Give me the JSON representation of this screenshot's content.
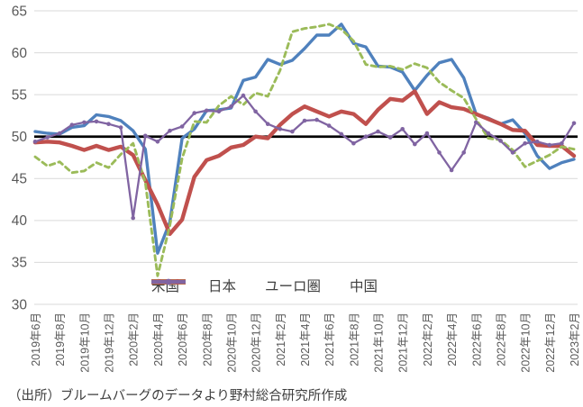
{
  "source_note": "（出所）ブルームバーグのデータより野村総合研究所作成",
  "chart_data": {
    "type": "line",
    "title": "",
    "xlabel": "",
    "ylabel": "",
    "ylim": [
      30,
      65
    ],
    "y_ticks": [
      30,
      35,
      40,
      45,
      50,
      55,
      60,
      65
    ],
    "reference_line": 50,
    "reference_line_color": "#000000",
    "grid": "horizontal",
    "grid_color": "#d9d9d9",
    "axis_text_color": "#595959",
    "legend_position": "bottom",
    "x_tick_step": 2,
    "categories": [
      "2019年6月",
      "2019年7月",
      "2019年8月",
      "2019年9月",
      "2019年10月",
      "2019年11月",
      "2019年12月",
      "2020年1月",
      "2020年2月",
      "2020年3月",
      "2020年4月",
      "2020年5月",
      "2020年6月",
      "2020年7月",
      "2020年8月",
      "2020年9月",
      "2020年10月",
      "2020年11月",
      "2020年12月",
      "2021年1月",
      "2021年2月",
      "2021年3月",
      "2021年4月",
      "2021年5月",
      "2021年6月",
      "2021年7月",
      "2021年8月",
      "2021年9月",
      "2021年10月",
      "2021年11月",
      "2021年12月",
      "2022年1月",
      "2022年2月",
      "2022年3月",
      "2022年4月",
      "2022年5月",
      "2022年6月",
      "2022年7月",
      "2022年8月",
      "2022年9月",
      "2022年10月",
      "2022年11月",
      "2022年12月",
      "2023年1月",
      "2023年2月"
    ],
    "series": [
      {
        "id": "us",
        "name": "米国",
        "color": "#4f81bd",
        "style": "solid",
        "width": 3.4,
        "markers": false,
        "values": [
          50.6,
          50.4,
          50.3,
          51.1,
          51.3,
          52.6,
          52.4,
          51.9,
          50.7,
          48.5,
          36.1,
          39.8,
          49.8,
          50.9,
          53.1,
          53.2,
          53.4,
          56.7,
          57.1,
          59.2,
          58.6,
          59.1,
          60.5,
          62.1,
          62.1,
          63.4,
          61.1,
          60.7,
          58.4,
          58.3,
          57.7,
          55.5,
          57.3,
          58.8,
          59.2,
          57.0,
          52.7,
          52.2,
          51.5,
          52.0,
          50.4,
          47.7,
          46.2,
          46.9,
          47.3
        ]
      },
      {
        "id": "japan",
        "name": "日本",
        "color": "#c0504d",
        "style": "solid",
        "width": 4.4,
        "markers": false,
        "values": [
          49.3,
          49.4,
          49.3,
          48.9,
          48.4,
          48.9,
          48.4,
          48.8,
          47.8,
          44.8,
          41.9,
          38.4,
          40.1,
          45.2,
          47.2,
          47.7,
          48.7,
          49.0,
          50.0,
          49.8,
          51.4,
          52.7,
          53.6,
          53.0,
          52.4,
          53.0,
          52.7,
          51.5,
          53.2,
          54.5,
          54.3,
          55.4,
          52.7,
          54.1,
          53.5,
          53.3,
          52.7,
          52.1,
          51.5,
          50.8,
          50.7,
          49.0,
          48.9,
          48.9,
          47.7
        ]
      },
      {
        "id": "eurozone",
        "name": "ユーロ圏",
        "color": "#9bbb59",
        "style": "dashed",
        "width": 2.9,
        "dash": "5.5 4.5",
        "markers": false,
        "values": [
          47.6,
          46.5,
          47.0,
          45.7,
          45.9,
          46.9,
          46.3,
          47.9,
          49.2,
          44.5,
          33.4,
          39.4,
          47.4,
          51.8,
          51.7,
          53.7,
          54.8,
          53.8,
          55.2,
          54.8,
          57.9,
          62.5,
          62.9,
          63.1,
          63.4,
          62.8,
          61.4,
          58.6,
          58.3,
          58.4,
          58.0,
          58.7,
          58.2,
          56.5,
          55.5,
          54.6,
          52.1,
          49.8,
          49.6,
          48.4,
          46.4,
          47.1,
          47.8,
          48.8,
          48.5
        ]
      },
      {
        "id": "china",
        "name": "中国",
        "color": "#8064a2",
        "style": "solid-markers",
        "width": 2.3,
        "markers": true,
        "values": [
          49.4,
          49.9,
          50.4,
          51.4,
          51.7,
          51.8,
          51.5,
          51.1,
          40.3,
          50.1,
          49.4,
          50.7,
          51.2,
          52.8,
          53.1,
          53.0,
          53.6,
          54.9,
          53.0,
          51.5,
          50.9,
          50.6,
          51.9,
          52.0,
          51.3,
          50.3,
          49.2,
          50.0,
          50.6,
          49.9,
          50.9,
          49.1,
          50.4,
          48.1,
          46.0,
          48.1,
          51.7,
          50.4,
          49.5,
          48.1,
          49.2,
          49.4,
          49.0,
          49.2,
          51.6
        ]
      }
    ]
  }
}
